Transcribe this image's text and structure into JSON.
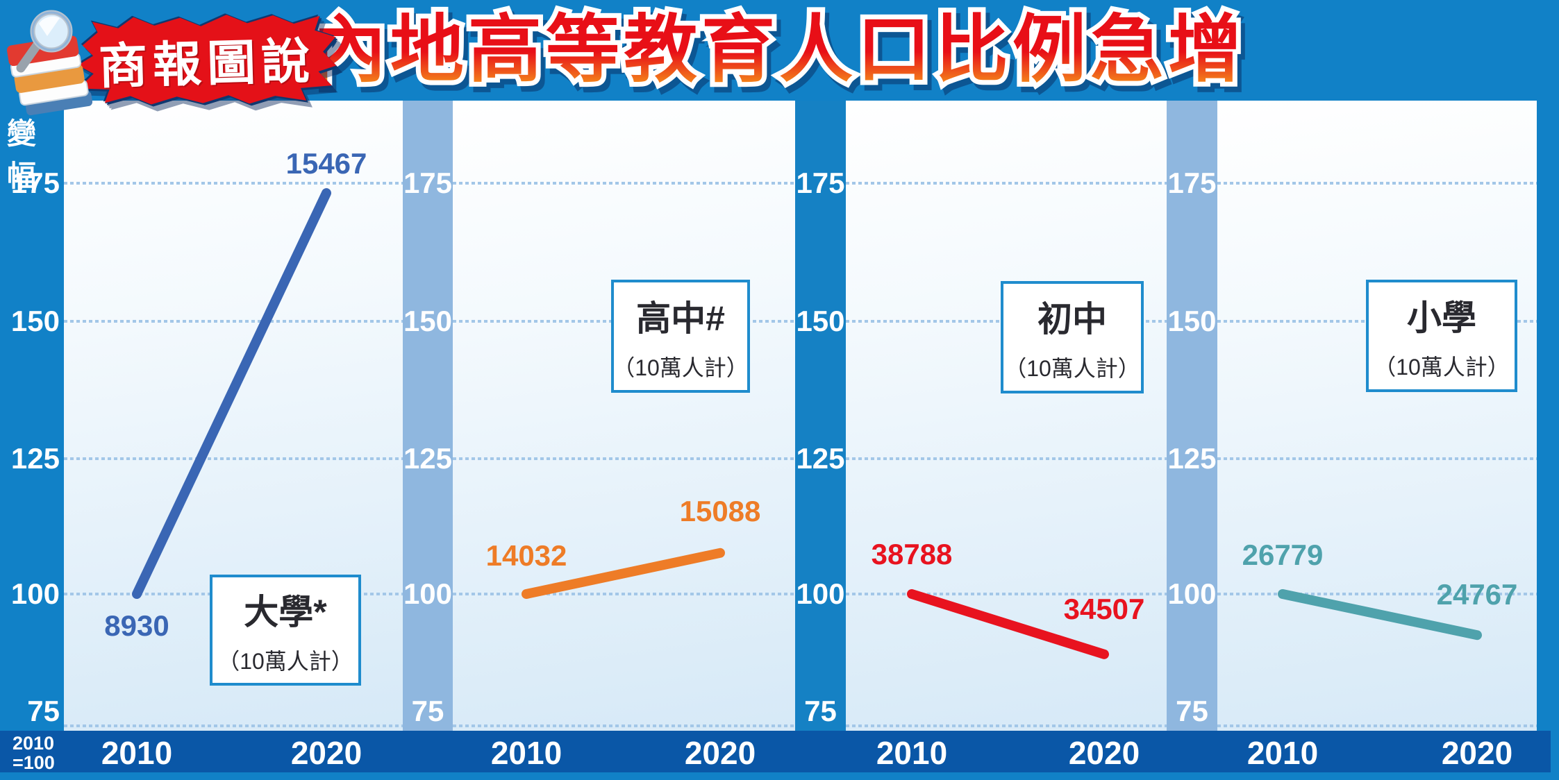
{
  "header": {
    "badge_text": "商報圖說",
    "title": "內地高等教育人口比例急增"
  },
  "axis": {
    "label": "變幅",
    "ticks": [
      "175",
      "150",
      "125",
      "100",
      "75"
    ],
    "footnote_line1": "2010",
    "footnote_line2": "=100"
  },
  "footer": {
    "years": [
      "2010",
      "2020"
    ]
  },
  "colors": {
    "frame_blue": "#1181c7",
    "footer_blue": "#0a57a7",
    "band_light": "#8fb7df",
    "band_dark": "#1581c4",
    "gridline_dots": "#a3c7e8",
    "box_border": "#1f8ccd",
    "title_red": "#e80f17",
    "title_orange": "#f8a219",
    "series_university": "#3a66b4",
    "series_senior_high": "#ee7c27",
    "series_junior_high": "#e8131f",
    "series_primary": "#4fa2ac"
  },
  "chart_data": {
    "type": "line",
    "title": "內地高等教育人口比例急增",
    "x": [
      "2010",
      "2020"
    ],
    "baseline_note": "2010=100",
    "y_axis": {
      "label": "變幅",
      "ticks": [
        175,
        150,
        125,
        100,
        75
      ],
      "range": [
        75,
        175
      ],
      "grid": true
    },
    "panels": [
      {
        "name": "大學*",
        "unit": "（10萬人計）",
        "color": "#3a66b4",
        "values": {
          "2010": 8930,
          "2020": 15467
        },
        "index": [
          100,
          173.2
        ]
      },
      {
        "name": "高中#",
        "unit": "（10萬人計）",
        "color": "#ee7c27",
        "values": {
          "2010": 14032,
          "2020": 15088
        },
        "index": [
          100,
          107.5
        ]
      },
      {
        "name": "初中",
        "unit": "（10萬人計）",
        "color": "#e8131f",
        "values": {
          "2010": 38788,
          "2020": 34507
        },
        "index": [
          100,
          89.0
        ]
      },
      {
        "name": "小學",
        "unit": "（10萬人計）",
        "color": "#4fa2ac",
        "values": {
          "2010": 26779,
          "2020": 24767
        },
        "index": [
          100,
          92.5
        ]
      }
    ]
  }
}
